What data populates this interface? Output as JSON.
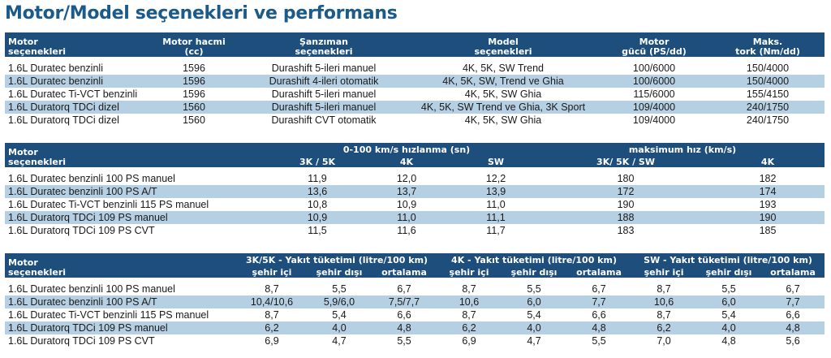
{
  "title": "Motor/Model seçenekleri ve performans",
  "t1": {
    "h": {
      "motor": [
        "Motor",
        "seçenekleri"
      ],
      "hacim": [
        "Motor hacmi",
        "(cc)"
      ],
      "sanziman": [
        "Şanzıman",
        "seçenekleri"
      ],
      "model": [
        "Model",
        "seçenekleri"
      ],
      "guc": [
        "Motor",
        "gücü (PS/dd)"
      ],
      "tork": [
        "Maks.",
        "tork (Nm/dd)"
      ]
    },
    "rows": [
      [
        "1.6L Duratec benzinli",
        "1596",
        "Durashift 5-ileri manuel",
        "4K, 5K, SW Trend",
        "100/6000",
        "150/4000"
      ],
      [
        "1.6L Duratec benzinli",
        "1596",
        "Durashift 4-ileri otomatik",
        "4K, 5K, SW, Trend ve Ghia",
        "100/6000",
        "150/4000"
      ],
      [
        "1.6L Duratec Ti-VCT benzinli",
        "1596",
        "Durashift 5-ileri manuel",
        "4K, 5K, SW Ghia",
        "115/6000",
        "155/4150"
      ],
      [
        "1.6L Duratorq TDCi dizel",
        "1560",
        "Durashift 5-ileri manuel",
        "4K, 5K, SW Trend ve Ghia, 3K Sport",
        "109/4000",
        "240/1750"
      ],
      [
        "1.6L Duratorq TDCi dizel",
        "1560",
        "Durashift CVT otomatik",
        "4K, 5K, SW Ghia",
        "109/4000",
        "240/1750"
      ]
    ]
  },
  "t2": {
    "h": {
      "motor": [
        "Motor",
        "seçenekleri"
      ],
      "accel": "0-100 km/s hızlanma (sn)",
      "maxspeed": "maksimum hız (km/s)",
      "c1": "3K / 5K",
      "c2": "4K",
      "c3": "SW",
      "c4": "3K/ 5K / SW",
      "c5": "4K"
    },
    "rows": [
      [
        "1.6L Duratec benzinli 100 PS manuel",
        "11,9",
        "12,0",
        "12,2",
        "180",
        "182"
      ],
      [
        "1.6L Duratec benzinli 100 PS A/T",
        "13,6",
        "13,7",
        "13,9",
        "172",
        "174"
      ],
      [
        "1.6L Duratec Ti-VCT benzinli 115 PS manuel",
        "10,8",
        "10,9",
        "11,0",
        "190",
        "193"
      ],
      [
        "1.6L Duratorq TDCi 109 PS manuel",
        "10,9",
        "11,0",
        "11,1",
        "188",
        "190"
      ],
      [
        "1.6L Duratorq TDCi 109 PS CVT",
        "11,5",
        "11,6",
        "11,7",
        "183",
        "185"
      ]
    ]
  },
  "t3": {
    "h": {
      "motor": [
        "Motor",
        "seçenekleri"
      ],
      "g1": "3K/5K - Yakıt tüketimi (litre/100 km)",
      "g2": "4K - Yakıt tüketimi (litre/100 km)",
      "g3": "SW - Yakıt tüketimi (litre/100 km)",
      "sub": [
        "şehir içi",
        "şehir dışı",
        "ortalama"
      ]
    },
    "rows": [
      [
        "1.6L Duratec benzinli 100 PS manuel",
        "8,7",
        "5,5",
        "6,7",
        "8,7",
        "5,5",
        "6,7",
        "8,7",
        "5,5",
        "6,7"
      ],
      [
        "1.6L Duratec benzinli 100 PS A/T",
        "10,4/10,6",
        "5,9/6,0",
        "7,5/7,7",
        "10,6",
        "6,0",
        "7,7",
        "10,6",
        "6,0",
        "7,7"
      ],
      [
        "1.6L Duratec Ti-VCT benzinli 115 PS manuel",
        "8,7",
        "5,4",
        "6,6",
        "8,7",
        "5,4",
        "6,6",
        "8,7",
        "5,4",
        "6,6"
      ],
      [
        "1.6L Duratorq TDCi 109 PS manuel",
        "6,2",
        "4,0",
        "4,8",
        "6,2",
        "4,0",
        "4,8",
        "6,2",
        "4,0",
        "4,8"
      ],
      [
        "1.6L Duratorq TDCi 109 PS CVT",
        "6,9",
        "4,7",
        "5,5",
        "6,9",
        "4,7",
        "5,5",
        "7,0",
        "4,8",
        "5,6"
      ]
    ]
  },
  "colors": {
    "header": "#1d4e7c",
    "title": "#1b5b8c",
    "alt_row": "#b6d0e3"
  }
}
